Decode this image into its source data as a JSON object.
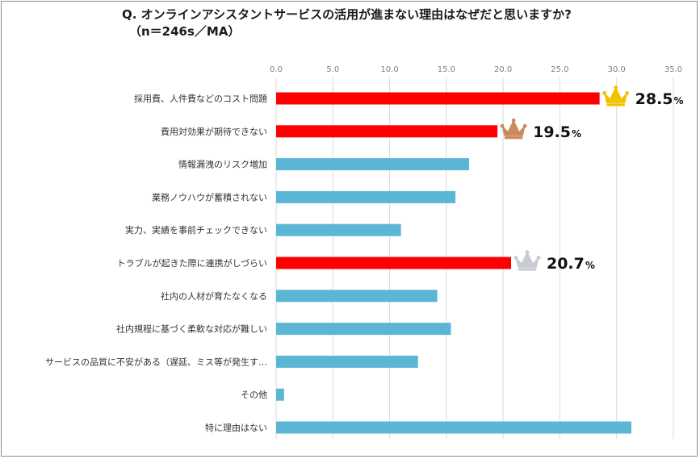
{
  "chart_data": {
    "type": "bar",
    "orientation": "horizontal",
    "title": "Q.  オンラインアシスタントサービスの活用が進まない理由はなぜだと思いますか?",
    "subtitle": "（n＝246s／MA）",
    "xlim": [
      0,
      35
    ],
    "ticks": [
      "0.0",
      "5.0",
      "10.0",
      "15.0",
      "20.0",
      "25.0",
      "30.0",
      "35.0"
    ],
    "tick_values": [
      0,
      5,
      10,
      15,
      20,
      25,
      30,
      35
    ],
    "grid": true,
    "categories": [
      "採用費、人件費などのコスト問題",
      "費用対効果が期待できない",
      "情報漏洩のリスク増加",
      "業務ノウハウが蓄積されない",
      "実力、実績を事前チェックできない",
      "トラブルが起きた際に連携がしづらい",
      "社内の人材が育たなくなる",
      "社内規程に基づく柔軟な対応が難しい",
      "サービスの品質に不安がある（遅延、ミス等が発生す…",
      "その他",
      "特に理由はない"
    ],
    "values": [
      28.5,
      19.5,
      17.0,
      15.8,
      11.0,
      20.7,
      14.2,
      15.4,
      12.5,
      0.7,
      31.3
    ],
    "bar_colors": [
      "#ff0000",
      "#ff0000",
      "#5bb5d5",
      "#5bb5d5",
      "#5bb5d5",
      "#ff0000",
      "#5bb5d5",
      "#5bb5d5",
      "#5bb5d5",
      "#5bb5d5",
      "#5bb5d5"
    ],
    "highlights": [
      {
        "index": 0,
        "rank": "gold",
        "label": "28.5",
        "unit": "%",
        "crown_color": "#f2c200"
      },
      {
        "index": 1,
        "rank": "bronze",
        "label": "19.5",
        "unit": "%",
        "crown_color": "#c98a5e"
      },
      {
        "index": 5,
        "rank": "silver",
        "label": "20.7",
        "unit": "%",
        "crown_color": "#c8ccd2"
      }
    ]
  }
}
